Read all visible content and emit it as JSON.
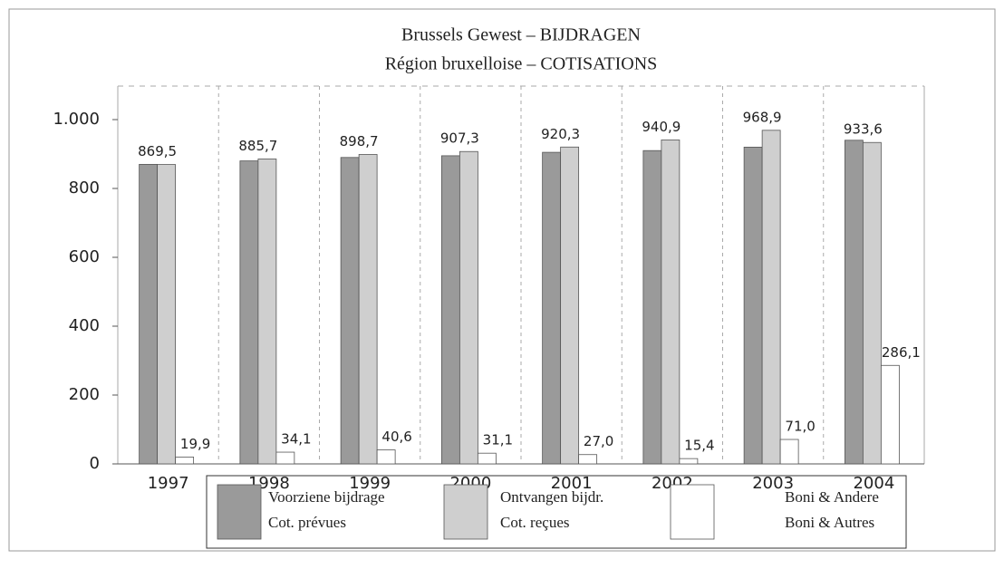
{
  "chart_data": {
    "type": "bar",
    "title": "Brussels Gewest – BIJDRAGEN",
    "subtitle": "Région bruxelloise – COTISATIONS",
    "categories": [
      "1997",
      "1998",
      "1999",
      "2000",
      "2001",
      "2002",
      "2003",
      "2004"
    ],
    "series": [
      {
        "name": [
          "Voorziene bijdrage",
          "Cot. prévues"
        ],
        "color": "#9a9a9a",
        "values": [
          870,
          880,
          890,
          895,
          905,
          910,
          920,
          940
        ]
      },
      {
        "name": [
          "Ontvangen bijdr.",
          "Cot. reçues"
        ],
        "color": "#cfcfcf",
        "values": [
          869.5,
          885.7,
          898.7,
          907.3,
          920.3,
          940.9,
          968.9,
          933.6
        ],
        "value_labels": [
          "869,5",
          "885,7",
          "898,7",
          "907,3",
          "920,3",
          "940,9",
          "968,9",
          "933,6"
        ]
      },
      {
        "name": [
          "Boni & Andere",
          "Boni & Autres"
        ],
        "color": "#ffffff",
        "values": [
          19.9,
          34.1,
          40.6,
          31.1,
          27.0,
          15.4,
          71.0,
          286.1
        ],
        "value_labels": [
          "19,9",
          "34,1",
          "40,6",
          "31,1",
          "27,0",
          "15,4",
          "71,0",
          "286,1"
        ]
      }
    ],
    "ylim": [
      0,
      1000
    ],
    "yticks": [
      0,
      200,
      400,
      600,
      800,
      {
        "value": 1000,
        "label": "1.000"
      }
    ],
    "grid": true
  }
}
